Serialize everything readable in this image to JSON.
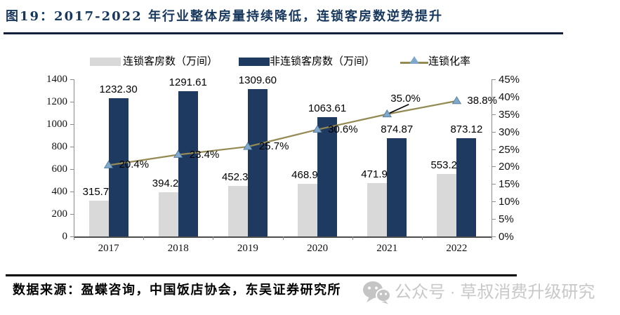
{
  "figure": {
    "title": "图19：2017-2022 年行业整体房量持续降低，连锁客房数逆势提升",
    "source": "数据来源：盈蝶咨询，中国饭店协会，东吴证券研究所",
    "watermark": "公众号 · 草叔消费升级研究"
  },
  "colors": {
    "navy_bar": "#1F3A60",
    "gray_bar": "#D9D9D9",
    "rate_line": "#948A54",
    "marker_fill": "#7FA7CB",
    "marker_stroke": "#49708F",
    "title_text": "#17375D",
    "axis": "#8C8C8C",
    "label_text": "#000000",
    "watermark_gray": "#C8C8C8",
    "leader_line": "#000000"
  },
  "chart_data": {
    "type": "bar+line-combo",
    "title": "2017-2022 年行业整体房量持续降低，连锁客房数逆势提升",
    "categories": [
      "2017",
      "2018",
      "2019",
      "2020",
      "2021",
      "2022"
    ],
    "series": [
      {
        "name": "连锁客房数（万间）",
        "type": "bar",
        "axis": "left",
        "values": [
          315.78,
          394.26,
          452.37,
          468.99,
          471.99,
          553.25
        ],
        "labels": [
          "315.78",
          "394.26",
          "452.37",
          "468.99",
          "471.99",
          "553.25"
        ]
      },
      {
        "name": "非连锁客房数（万间）",
        "type": "bar",
        "axis": "left",
        "values": [
          1232.3,
          1291.61,
          1309.6,
          1063.61,
          874.87,
          873.12
        ],
        "labels": [
          "1232.30",
          "1291.61",
          "1309.60",
          "1063.61",
          "874.87",
          "873.12"
        ]
      },
      {
        "name": "连锁化率",
        "type": "line",
        "axis": "right",
        "values": [
          20.4,
          23.4,
          25.7,
          30.6,
          35.0,
          38.8
        ],
        "labels": [
          "20.4%",
          "23.4%",
          "25.7%",
          "30.6%",
          "35.0%",
          "38.8%"
        ]
      }
    ],
    "left_axis": {
      "min": 0,
      "max": 1400,
      "step": 200,
      "ticks": [
        "0",
        "200",
        "400",
        "600",
        "800",
        "1000",
        "1200",
        "1400"
      ]
    },
    "right_axis": {
      "min": 0,
      "max": 45,
      "step": 5,
      "ticks": [
        "0%",
        "5%",
        "10%",
        "15%",
        "20%",
        "25%",
        "30%",
        "35%",
        "40%",
        "45%"
      ]
    },
    "grid": false,
    "legend_position": "top"
  }
}
